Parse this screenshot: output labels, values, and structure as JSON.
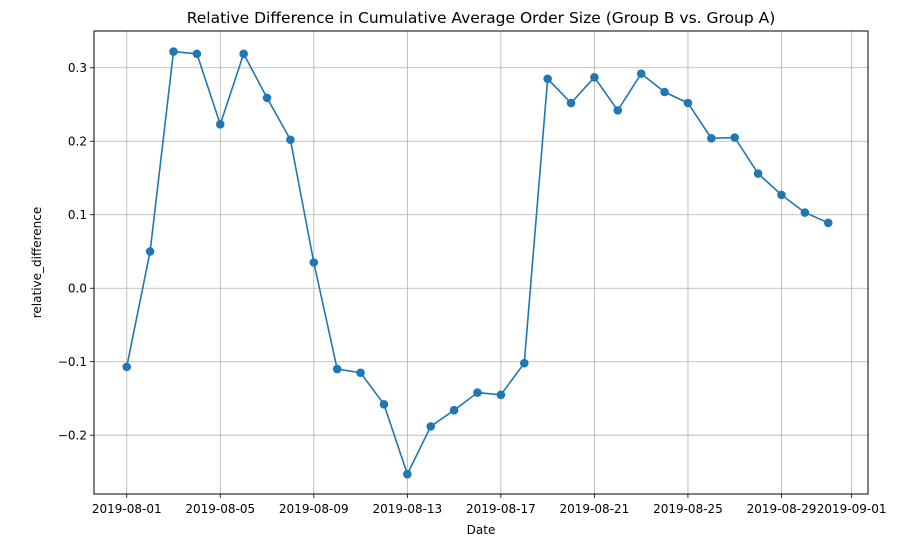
{
  "chart_data": {
    "type": "line",
    "title": "Relative Difference in Cumulative Average Order Size (Group B vs. Group A)",
    "xlabel": "Date",
    "ylabel": "relative_difference",
    "grid": true,
    "marker": "circle",
    "line_color": "#1f77b4",
    "xlim": [
      "2019-07-30",
      "2019-09-02"
    ],
    "ylim": [
      -0.28,
      0.35
    ],
    "x_ticks": [
      "2019-08-01",
      "2019-08-05",
      "2019-08-09",
      "2019-08-13",
      "2019-08-17",
      "2019-08-21",
      "2019-08-25",
      "2019-08-29",
      "2019-09-01"
    ],
    "y_ticks": [
      -0.2,
      -0.1,
      0.0,
      0.1,
      0.2,
      0.3
    ],
    "y_tick_labels": [
      "−0.2",
      "−0.1",
      "0.0",
      "0.1",
      "0.2",
      "0.3"
    ],
    "series": [
      {
        "x": [
          "2019-08-01",
          "2019-08-02",
          "2019-08-03",
          "2019-08-04",
          "2019-08-05",
          "2019-08-06",
          "2019-08-07",
          "2019-08-08",
          "2019-08-09",
          "2019-08-10",
          "2019-08-11",
          "2019-08-12",
          "2019-08-13",
          "2019-08-14",
          "2019-08-15",
          "2019-08-16",
          "2019-08-17",
          "2019-08-18",
          "2019-08-19",
          "2019-08-20",
          "2019-08-21",
          "2019-08-22",
          "2019-08-23",
          "2019-08-24",
          "2019-08-25",
          "2019-08-26",
          "2019-08-27",
          "2019-08-28",
          "2019-08-29",
          "2019-08-30",
          "2019-08-31"
        ],
        "values": [
          -0.107,
          0.05,
          0.322,
          0.319,
          0.223,
          0.319,
          0.259,
          0.202,
          0.035,
          -0.11,
          -0.115,
          -0.158,
          -0.253,
          -0.188,
          -0.166,
          -0.142,
          -0.145,
          -0.102,
          0.285,
          0.252,
          0.287,
          0.242,
          0.292,
          0.267,
          0.252,
          0.204,
          0.205,
          0.156,
          0.127,
          0.103,
          0.089
        ]
      }
    ]
  }
}
